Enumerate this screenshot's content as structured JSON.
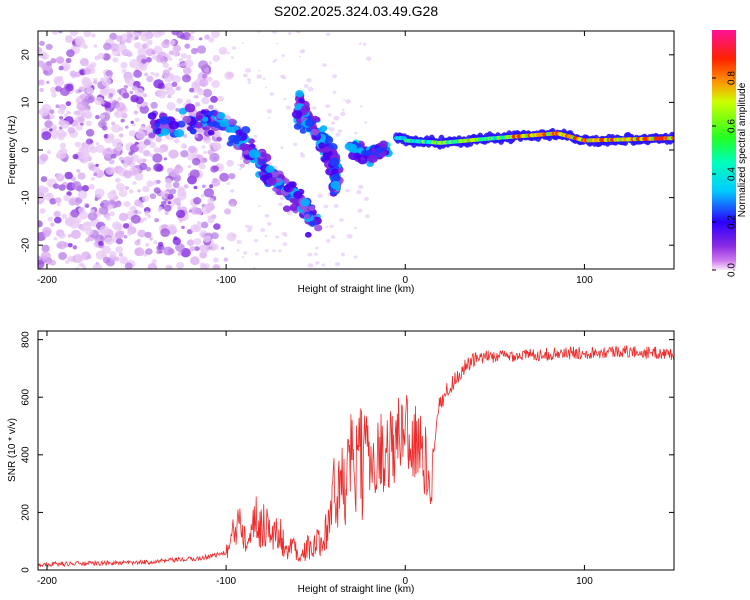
{
  "title": "S202.2025.324.03.49.G28",
  "colors": {
    "snr_line": "#ee2a2a",
    "frame": "#000000"
  },
  "chart_data": [
    {
      "type": "heatmap",
      "name": "spectrogram",
      "xlabel": "Height of straight line (km)",
      "ylabel": "Frequency (Hz)",
      "xlim": [
        -205,
        150
      ],
      "ylim": [
        -25,
        25
      ],
      "xticks": [
        -200,
        -100,
        0,
        100
      ],
      "yticks": [
        -20,
        -10,
        0,
        10,
        20
      ],
      "ridge": [
        {
          "x": -145,
          "y": 4
        },
        {
          "x": -120,
          "y": 6
        },
        {
          "x": -110,
          "y": 7
        },
        {
          "x": -100,
          "y": 5
        },
        {
          "x": -90,
          "y": 1
        },
        {
          "x": -80,
          "y": -3
        },
        {
          "x": -70,
          "y": -7
        },
        {
          "x": -60,
          "y": -11
        },
        {
          "x": -50,
          "y": -15
        },
        {
          "x": -60,
          "y": 9
        },
        {
          "x": -55,
          "y": 6
        },
        {
          "x": -48,
          "y": 3
        },
        {
          "x": -42,
          "y": -1
        },
        {
          "x": -38,
          "y": -5
        },
        {
          "x": -40,
          "y": -9
        },
        {
          "x": -30,
          "y": 0
        },
        {
          "x": -20,
          "y": -1
        },
        {
          "x": -10,
          "y": 0
        },
        {
          "x": 0,
          "y": 2
        },
        {
          "x": 20,
          "y": 1.5
        },
        {
          "x": 50,
          "y": 2.5
        },
        {
          "x": 85,
          "y": 3.5
        },
        {
          "x": 100,
          "y": 2
        },
        {
          "x": 150,
          "y": 2.5
        }
      ]
    },
    {
      "type": "colorbar",
      "name": "amplitude-colorbar",
      "label": "Normalized spectral amplitude",
      "range": [
        0,
        1
      ],
      "ticks": [
        0.0,
        0.2,
        0.4,
        0.6,
        0.8
      ],
      "tick_labels": [
        "0.0",
        "0.2",
        "0.4",
        "0.6",
        "0.8"
      ]
    },
    {
      "type": "line",
      "name": "snr-plot",
      "xlabel": "Height of straight line (km)",
      "ylabel": "SNR (10 * v/v)",
      "xlim": [
        -205,
        150
      ],
      "ylim": [
        0,
        830
      ],
      "xticks": [
        -200,
        -100,
        0,
        100
      ],
      "yticks": [
        0,
        200,
        400,
        600,
        800
      ],
      "series": [
        {
          "name": "SNR",
          "x": [
            -205,
            -150,
            -115,
            -100,
            -97,
            -92,
            -88,
            -85,
            -82,
            -78,
            -74,
            -70,
            -66,
            -62,
            -58,
            -55,
            -52,
            -48,
            -44,
            -40,
            -36,
            -32,
            -28,
            -24,
            -20,
            -16,
            -12,
            -8,
            -4,
            0,
            4,
            8,
            12,
            14,
            18,
            24,
            30,
            36,
            45,
            60,
            80,
            100,
            120,
            150
          ],
          "y": [
            20,
            25,
            40,
            60,
            100,
            190,
            110,
            220,
            140,
            170,
            110,
            130,
            60,
            90,
            40,
            80,
            70,
            100,
            150,
            260,
            270,
            330,
            380,
            360,
            350,
            420,
            400,
            430,
            450,
            520,
            450,
            420,
            360,
            300,
            560,
            630,
            680,
            720,
            740,
            745,
            750,
            755,
            760,
            750
          ]
        }
      ]
    }
  ]
}
